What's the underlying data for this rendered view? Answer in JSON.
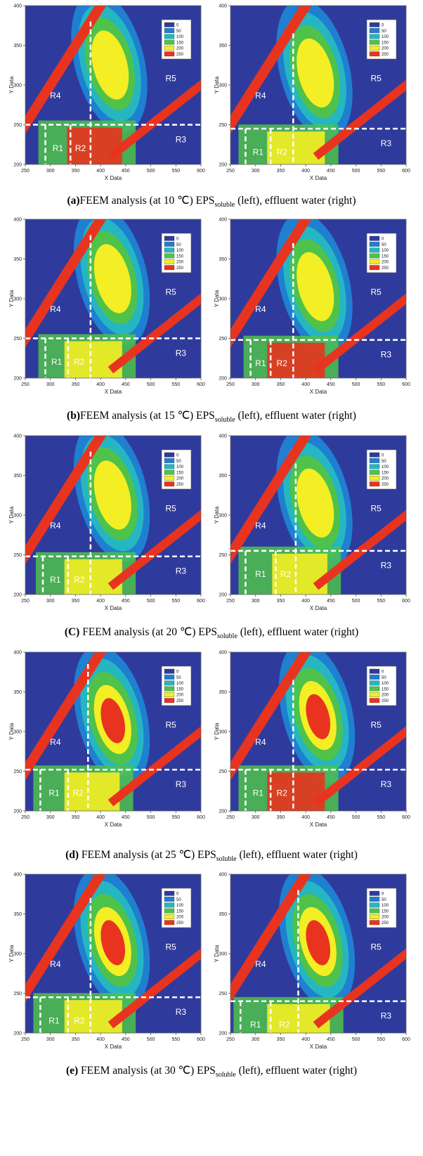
{
  "colors": {
    "bg": "#2f3b9c",
    "level_0": "#2f3b9c",
    "level_50": "#1f7fd0",
    "level_100": "#25b6c2",
    "level_150": "#4fc24b",
    "level_200": "#f4ee24",
    "level_250": "#e8341f"
  },
  "chart_data": [
    {
      "id": "a-left",
      "type": "heatmap",
      "xlabel": "X Data",
      "ylabel": "Y Data",
      "xlim": [
        250,
        600
      ],
      "ylim": [
        200,
        400
      ],
      "xticks": [
        "250",
        "300",
        "350",
        "400",
        "450",
        "500",
        "550",
        "600"
      ],
      "yticks": [
        "200",
        "250",
        "300",
        "350",
        "400"
      ],
      "legend": [
        "0",
        "50",
        "100",
        "150",
        "200",
        "250"
      ],
      "legend_position": "top-right",
      "regions": [
        "R1",
        "R2",
        "R3",
        "R4",
        "R5"
      ],
      "boundaries": {
        "x": [
          290,
          340,
          380
        ],
        "y": [
          250
        ],
        "v_top": 380
      },
      "peak": {
        "ex": 420,
        "em": 330,
        "level": "medium",
        "bottom": "strong"
      }
    },
    {
      "id": "a-right",
      "type": "heatmap",
      "xlabel": "X Data",
      "ylabel": "Y Data",
      "xlim": [
        250,
        600
      ],
      "ylim": [
        200,
        400
      ],
      "xticks": [
        "250",
        "300",
        "350",
        "400",
        "450",
        "500",
        "550",
        "600"
      ],
      "yticks": [
        "200",
        "250",
        "300",
        "350",
        "400"
      ],
      "legend": [
        "0",
        "50",
        "100",
        "150",
        "200",
        "250"
      ],
      "legend_position": "top-right",
      "regions": [
        "R1",
        "R2",
        "R3",
        "R4",
        "R5"
      ],
      "boundaries": {
        "x": [
          280,
          330,
          375
        ],
        "y": [
          245
        ],
        "v_top": 365
      },
      "peak": {
        "ex": 420,
        "em": 320,
        "level": "medium",
        "bottom": "medium"
      }
    },
    {
      "id": "b-left",
      "type": "heatmap",
      "xlabel": "X Data",
      "ylabel": "Y Data",
      "xlim": [
        250,
        600
      ],
      "ylim": [
        200,
        400
      ],
      "xticks": [
        "250",
        "300",
        "350",
        "400",
        "450",
        "500",
        "550",
        "600"
      ],
      "yticks": [
        "200",
        "250",
        "300",
        "350",
        "400"
      ],
      "legend": [
        "0",
        "50",
        "100",
        "150",
        "200",
        "250"
      ],
      "legend_position": "top-right",
      "regions": [
        "R1",
        "R2",
        "R3",
        "R4",
        "R5"
      ],
      "boundaries": {
        "x": [
          290,
          335,
          380
        ],
        "y": [
          250
        ],
        "v_top": 380
      },
      "peak": {
        "ex": 425,
        "em": 330,
        "level": "medium",
        "bottom": "medium"
      }
    },
    {
      "id": "b-right",
      "type": "heatmap",
      "xlabel": "X Data",
      "ylabel": "Y Data",
      "xlim": [
        250,
        600
      ],
      "ylim": [
        200,
        400
      ],
      "xticks": [
        "250",
        "300",
        "350",
        "400",
        "450",
        "500",
        "550",
        "600"
      ],
      "yticks": [
        "200",
        "250",
        "300",
        "350",
        "400"
      ],
      "legend": [
        "0",
        "50",
        "100",
        "150",
        "200",
        "250"
      ],
      "legend_position": "top-right",
      "regions": [
        "R1",
        "R2",
        "R3",
        "R4",
        "R5"
      ],
      "boundaries": {
        "x": [
          290,
          330,
          375
        ],
        "y": [
          248
        ],
        "v_top": 370
      },
      "peak": {
        "ex": 420,
        "em": 320,
        "level": "medium",
        "bottom": "strong"
      }
    },
    {
      "id": "c-left",
      "type": "heatmap",
      "xlabel": "X Data",
      "ylabel": "Y Data",
      "xlim": [
        250,
        600
      ],
      "ylim": [
        200,
        400
      ],
      "xticks": [
        "250",
        "300",
        "350",
        "400",
        "450",
        "500",
        "550",
        "600"
      ],
      "yticks": [
        "200",
        "250",
        "300",
        "350",
        "400"
      ],
      "legend": [
        "0",
        "50",
        "100",
        "150",
        "200",
        "250"
      ],
      "legend_position": "top-right",
      "regions": [
        "R1",
        "R2",
        "R3",
        "R4",
        "R5"
      ],
      "boundaries": {
        "x": [
          285,
          335,
          380
        ],
        "y": [
          248
        ],
        "v_top": 380
      },
      "peak": {
        "ex": 425,
        "em": 330,
        "level": "medium",
        "bottom": "medium"
      }
    },
    {
      "id": "c-right",
      "type": "heatmap",
      "xlabel": "X Data",
      "ylabel": "Y Data",
      "xlim": [
        250,
        600
      ],
      "ylim": [
        200,
        400
      ],
      "xticks": [
        "250",
        "300",
        "350",
        "400",
        "450",
        "500",
        "550",
        "600"
      ],
      "yticks": [
        "200",
        "250",
        "300",
        "350",
        "400"
      ],
      "legend": [
        "0",
        "50",
        "100",
        "150",
        "200",
        "250"
      ],
      "legend_position": "top-right",
      "regions": [
        "R1",
        "R2",
        "R3",
        "R4",
        "R5"
      ],
      "boundaries": {
        "x": [
          280,
          340,
          380
        ],
        "y": [
          255
        ],
        "v_top": 365
      },
      "peak": {
        "ex": 420,
        "em": 320,
        "level": "medium",
        "bottom": "medium"
      }
    },
    {
      "id": "d-left",
      "type": "heatmap",
      "xlabel": "X Data",
      "ylabel": "Y Data",
      "xlim": [
        250,
        600
      ],
      "ylim": [
        200,
        400
      ],
      "xticks": [
        "250",
        "300",
        "350",
        "400",
        "450",
        "500",
        "550",
        "600"
      ],
      "yticks": [
        "200",
        "250",
        "300",
        "350",
        "400"
      ],
      "legend": [
        "0",
        "50",
        "100",
        "150",
        "200",
        "250"
      ],
      "legend_position": "top-right",
      "regions": [
        "R1",
        "R2",
        "R3",
        "R4",
        "R5"
      ],
      "boundaries": {
        "x": [
          280,
          335,
          375
        ],
        "y": [
          252
        ],
        "v_top": 385
      },
      "peak": {
        "ex": 425,
        "em": 320,
        "level": "strong",
        "bottom": "medium"
      }
    },
    {
      "id": "d-right",
      "type": "heatmap",
      "xlabel": "X Data",
      "ylabel": "Y Data",
      "xlim": [
        250,
        600
      ],
      "ylim": [
        200,
        400
      ],
      "xticks": [
        "250",
        "300",
        "350",
        "400",
        "450",
        "500",
        "550",
        "600"
      ],
      "yticks": [
        "200",
        "250",
        "300",
        "350",
        "400"
      ],
      "legend": [
        "0",
        "50",
        "100",
        "150",
        "200",
        "250"
      ],
      "legend_position": "top-right",
      "regions": [
        "R1",
        "R2",
        "R3",
        "R4",
        "R5"
      ],
      "boundaries": {
        "x": [
          280,
          330,
          375
        ],
        "y": [
          252
        ],
        "v_top": 365
      },
      "peak": {
        "ex": 425,
        "em": 325,
        "level": "strong",
        "bottom": "strong"
      }
    },
    {
      "id": "e-left",
      "type": "heatmap",
      "xlabel": "X Data",
      "ylabel": "Y Data",
      "xlim": [
        250,
        600
      ],
      "ylim": [
        200,
        400
      ],
      "xticks": [
        "250",
        "300",
        "350",
        "400",
        "450",
        "500",
        "550",
        "600"
      ],
      "yticks": [
        "200",
        "250",
        "300",
        "350",
        "400"
      ],
      "legend": [
        "0",
        "50",
        "100",
        "150",
        "200",
        "250"
      ],
      "legend_position": "top-right",
      "regions": [
        "R1",
        "R2",
        "R3",
        "R4",
        "R5"
      ],
      "boundaries": {
        "x": [
          280,
          335,
          380
        ],
        "y": [
          245
        ],
        "v_top": 370
      },
      "peak": {
        "ex": 425,
        "em": 320,
        "level": "strong",
        "bottom": "medium"
      }
    },
    {
      "id": "e-right",
      "type": "heatmap",
      "xlabel": "X Data",
      "ylabel": "Y Data",
      "xlim": [
        250,
        600
      ],
      "ylim": [
        200,
        400
      ],
      "xticks": [
        "250",
        "300",
        "350",
        "400",
        "450",
        "500",
        "550",
        "600"
      ],
      "yticks": [
        "200",
        "250",
        "300",
        "350",
        "400"
      ],
      "legend": [
        "0",
        "50",
        "100",
        "150",
        "200",
        "250"
      ],
      "legend_position": "top-right",
      "regions": [
        "R1",
        "R2",
        "R3",
        "R4",
        "R5"
      ],
      "boundaries": {
        "x": [
          270,
          330,
          385
        ],
        "y": [
          240
        ],
        "v_top": 380
      },
      "peak": {
        "ex": 425,
        "em": 320,
        "level": "strong",
        "bottom": "medium"
      }
    }
  ],
  "captions": [
    {
      "label": "(a)",
      "pre": "FEEM analysis (at 10 ℃) EPS",
      "sub": "soluble",
      "post": " (left), effluent water (right)"
    },
    {
      "label": "(b)",
      "pre": "FEEM analysis (at 15 ℃) EPS",
      "sub": "soluble",
      "post": " (left), effluent water (right)"
    },
    {
      "label": "(C)",
      "pre": " FEEM analysis (at 20 ℃) EPS",
      "sub": "soluble",
      "post": " (left), effluent water (right)"
    },
    {
      "label": "(d)",
      "pre": " FEEM analysis (at 25 ℃) EPS",
      "sub": "soluble",
      "post": " (left), effluent water (right)"
    },
    {
      "label": "(e)",
      "pre": " FEEM analysis (at 30 ℃) EPS",
      "sub": "soluble",
      "post": " (left), effluent water (right)"
    }
  ]
}
